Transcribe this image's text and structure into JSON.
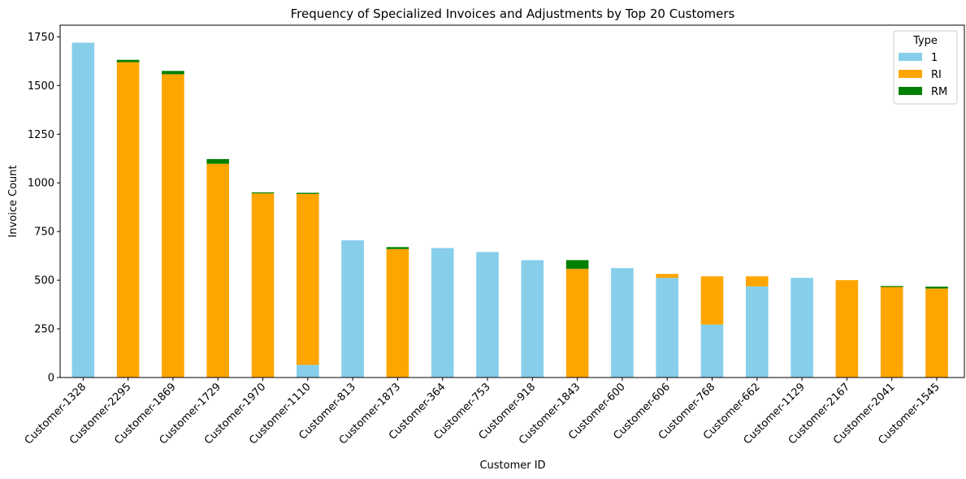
{
  "chart_data": {
    "type": "bar",
    "stacked": true,
    "title": "Frequency of Specialized Invoices and Adjustments by Top 20 Customers",
    "xlabel": "Customer ID",
    "ylabel": "Invoice Count",
    "ylim": [
      0,
      1810
    ],
    "yticks": [
      0,
      250,
      500,
      750,
      1000,
      1250,
      1500,
      1750
    ],
    "grid": false,
    "legend": {
      "title": "Type",
      "placement": "top-right"
    },
    "categories": [
      "Customer-1328",
      "Customer-2295",
      "Customer-1869",
      "Customer-1729",
      "Customer-1970",
      "Customer-1110",
      "Customer-813",
      "Customer-1873",
      "Customer-364",
      "Customer-753",
      "Customer-918",
      "Customer-1843",
      "Customer-600",
      "Customer-606",
      "Customer-768",
      "Customer-662",
      "Customer-1129",
      "Customer-2167",
      "Customer-2041",
      "Customer-1545"
    ],
    "series": [
      {
        "name": "1",
        "color": "#87ceeb",
        "values": [
          1720,
          0,
          0,
          0,
          0,
          65,
          705,
          0,
          665,
          645,
          603,
          0,
          562,
          512,
          272,
          468,
          512,
          0,
          0,
          0
        ]
      },
      {
        "name": "RI",
        "color": "#ffa500",
        "values": [
          0,
          1620,
          1558,
          1098,
          946,
          878,
          0,
          660,
          0,
          0,
          0,
          558,
          0,
          20,
          248,
          52,
          0,
          500,
          465,
          457
        ]
      },
      {
        "name": "RM",
        "color": "#008000",
        "values": [
          0,
          12,
          17,
          24,
          5,
          6,
          0,
          10,
          0,
          0,
          0,
          45,
          0,
          0,
          0,
          0,
          0,
          0,
          5,
          10
        ]
      }
    ]
  }
}
